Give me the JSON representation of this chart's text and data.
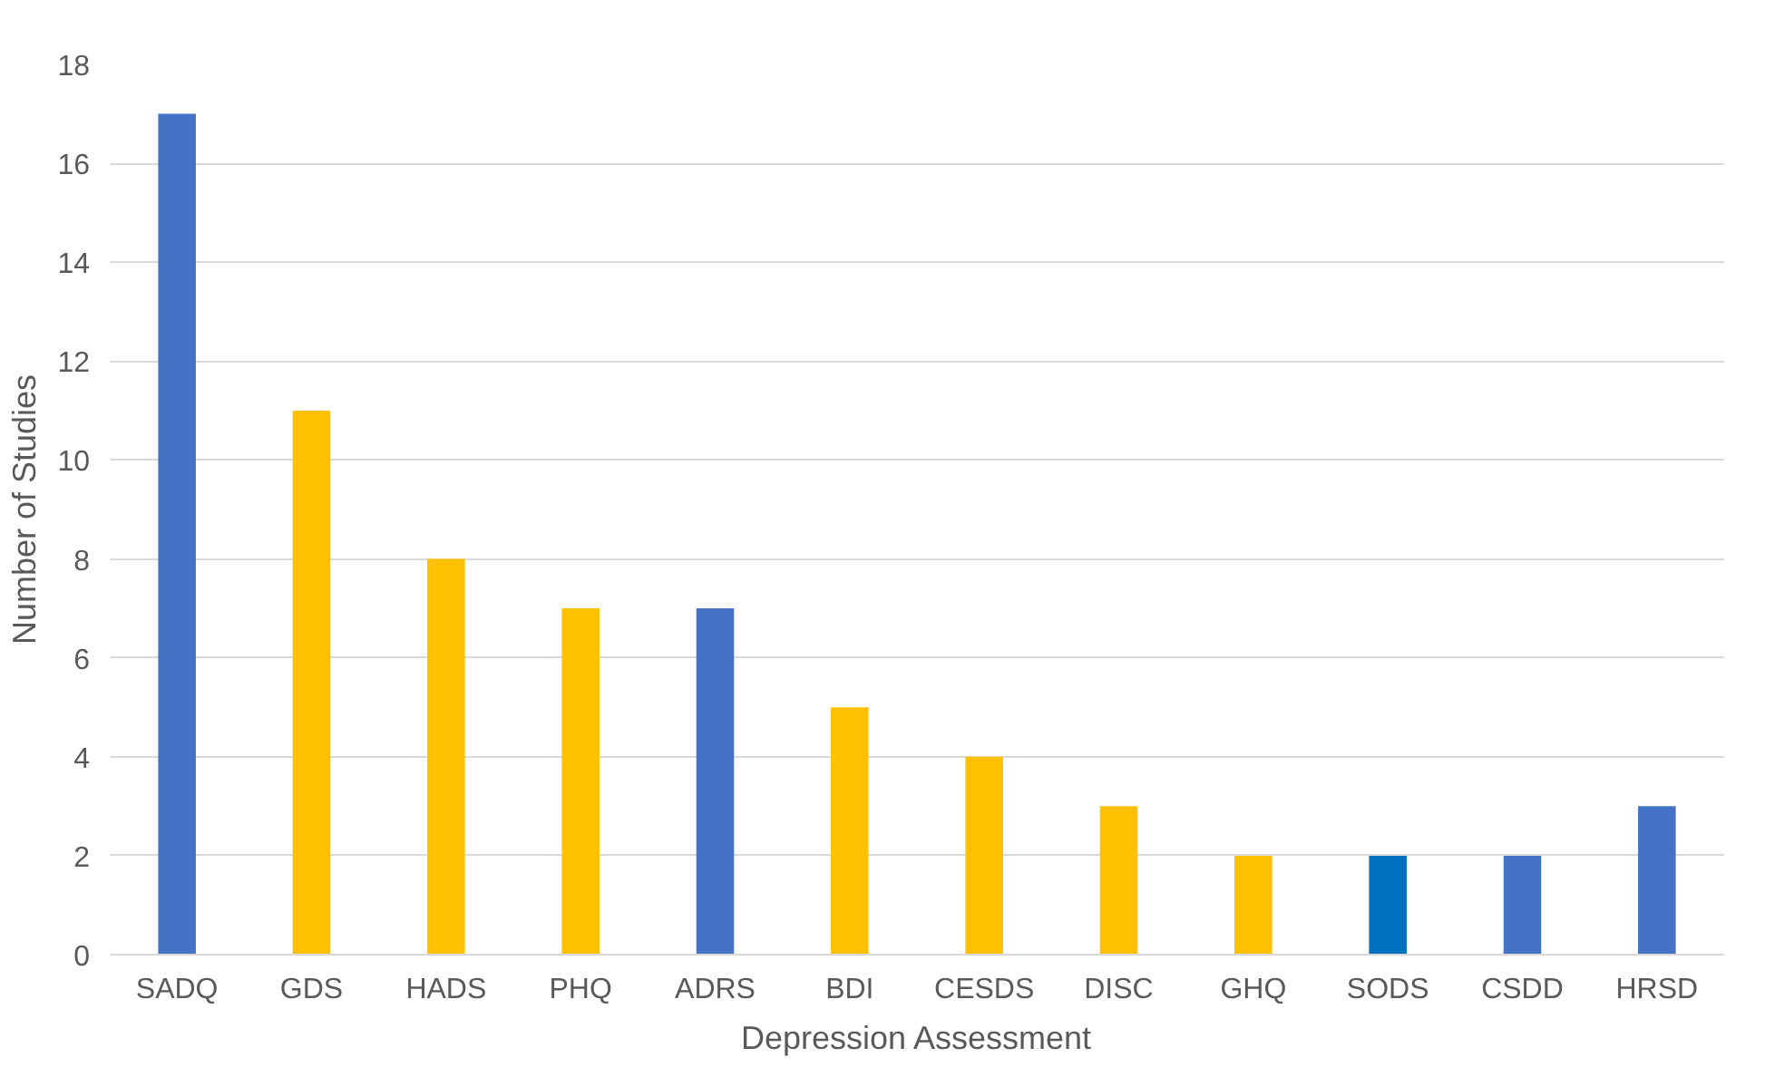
{
  "chart_data": {
    "type": "bar",
    "xlabel": "Depression Assessment",
    "ylabel": "Number of Studies",
    "categories": [
      "SADQ",
      "GDS",
      "HADS",
      "PHQ",
      "ADRS",
      "BDI",
      "CESDS",
      "DISC",
      "GHQ",
      "SODS",
      "CSDD",
      "HRSD"
    ],
    "values": [
      17,
      11,
      8,
      7,
      7,
      5,
      4,
      3,
      2,
      2,
      2,
      3
    ],
    "colors": [
      "#4472c4",
      "#ffc000",
      "#ffc000",
      "#ffc000",
      "#4472c4",
      "#ffc000",
      "#ffc000",
      "#ffc000",
      "#ffc000",
      "#0070c0",
      "#4472c4",
      "#4472c4"
    ],
    "ylim": [
      0,
      18
    ],
    "yticks": [
      0,
      2,
      4,
      6,
      8,
      10,
      12,
      14,
      16,
      18
    ],
    "grid": "y"
  }
}
